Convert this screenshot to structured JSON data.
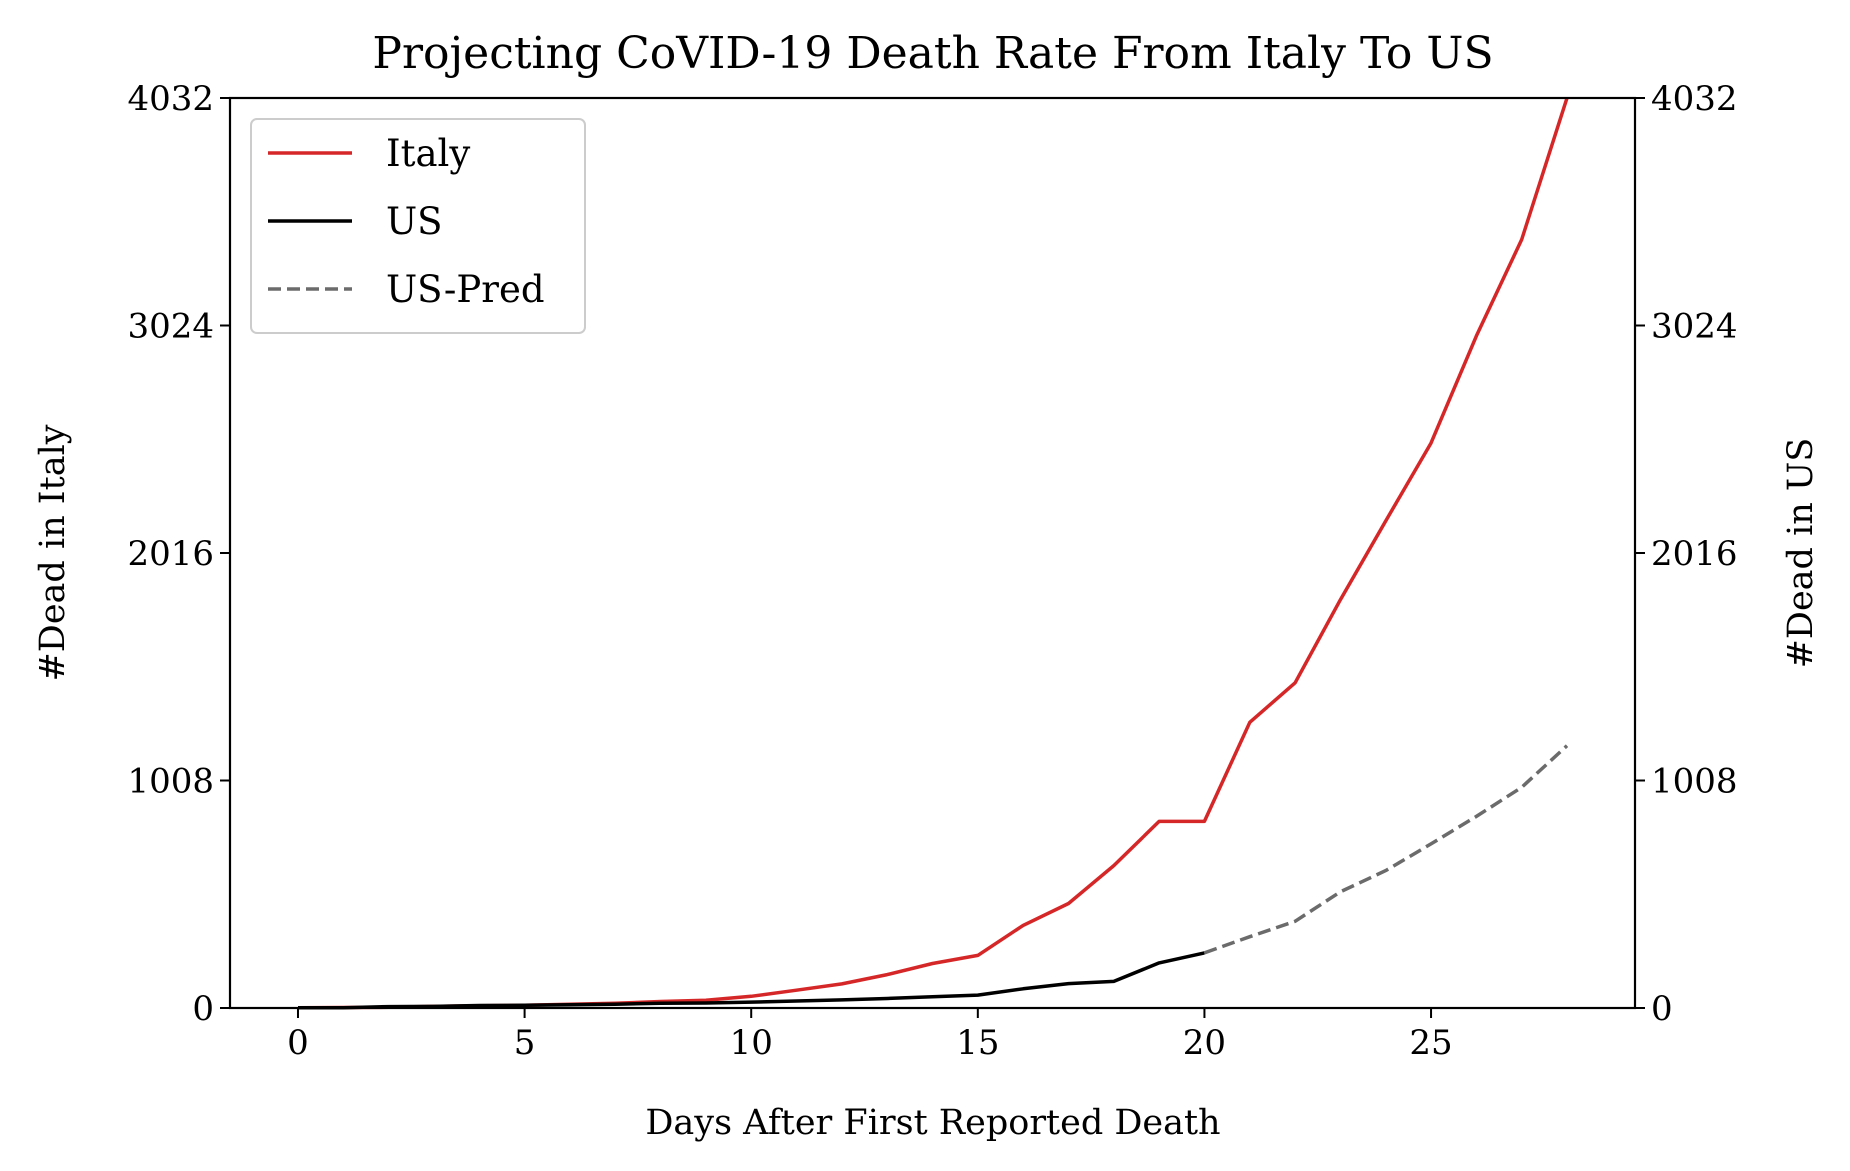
{
  "chart_data": {
    "type": "line",
    "title": "Projecting CoVID-19 Death Rate From Italy To US",
    "xlabel": "Days After First Reported Death",
    "ylabel_left": "#Dead in Italy",
    "ylabel_right": "#Dead in US",
    "xlim": [
      -1.5,
      29.5
    ],
    "ylim": [
      0,
      4032
    ],
    "xticks": [
      0,
      5,
      10,
      15,
      20,
      25
    ],
    "yticks": [
      0,
      1008,
      2016,
      3024,
      4032
    ],
    "grid": false,
    "legend_position": "top-left",
    "series": [
      {
        "name": "Italy",
        "color": "#d62728",
        "style": "solid",
        "x": [
          0,
          1,
          2,
          3,
          4,
          5,
          6,
          7,
          8,
          9,
          10,
          11,
          12,
          13,
          14,
          15,
          16,
          17,
          18,
          19,
          20,
          21,
          22,
          23,
          24,
          25,
          26,
          27,
          28
        ],
        "y": [
          1,
          2,
          3,
          7,
          10,
          12,
          17,
          21,
          29,
          34,
          52,
          79,
          107,
          148,
          197,
          233,
          366,
          463,
          631,
          827,
          827,
          1266,
          1441,
          1809,
          2158,
          2503,
          2978,
          3405,
          4032
        ]
      },
      {
        "name": "US",
        "color": "#000000",
        "style": "solid",
        "x": [
          0,
          1,
          2,
          3,
          4,
          5,
          6,
          7,
          8,
          9,
          10,
          11,
          12,
          13,
          14,
          15,
          16,
          17,
          18,
          19,
          20
        ],
        "y": [
          1,
          1,
          6,
          7,
          11,
          12,
          14,
          17,
          21,
          22,
          26,
          31,
          36,
          42,
          50,
          57,
          85,
          108,
          118,
          200,
          244
        ]
      },
      {
        "name": "US-Pred",
        "color": "#6b6b6b",
        "style": "dashed",
        "x": [
          20,
          21,
          22,
          23,
          24,
          25,
          26,
          27,
          28
        ],
        "y": [
          244,
          316,
          384,
          515,
          609,
          727,
          849,
          978,
          1162
        ]
      }
    ]
  }
}
